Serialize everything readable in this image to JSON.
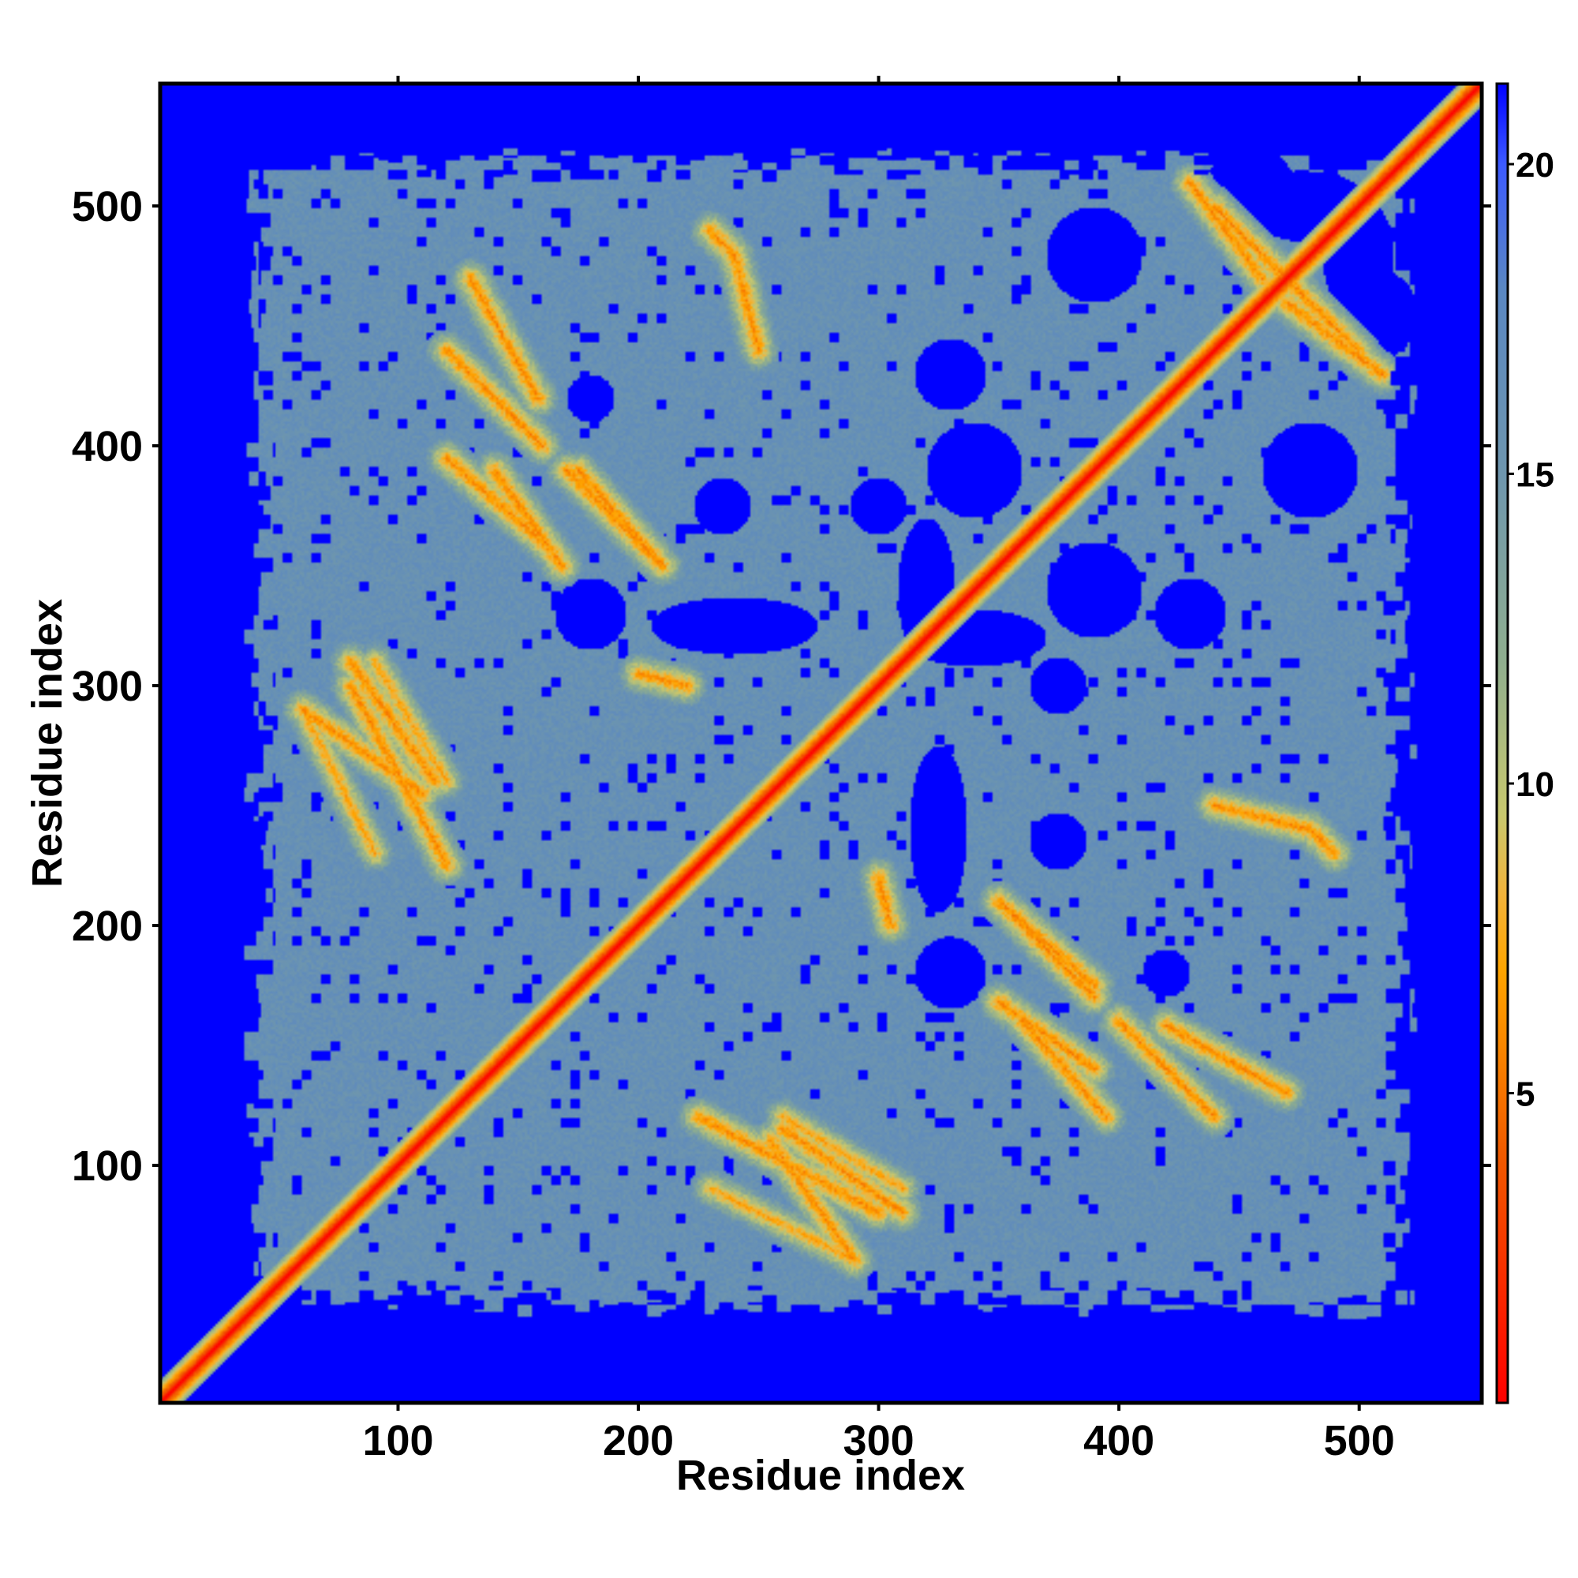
{
  "chart_data": {
    "type": "heatmap",
    "title": "",
    "xlabel": "Residue index",
    "ylabel": "Residue index",
    "xlim": [
      1,
      551
    ],
    "ylim": [
      1,
      551
    ],
    "xticks": [
      100,
      200,
      300,
      400,
      500
    ],
    "yticks": [
      100,
      200,
      300,
      400,
      500
    ],
    "colorbar": {
      "range": [
        0,
        21.3
      ],
      "ticks": [
        5,
        10,
        15,
        20
      ],
      "stops": [
        {
          "value": 0,
          "color": "#ff0000"
        },
        {
          "value": 4,
          "color": "#f05a00"
        },
        {
          "value": 7,
          "color": "#ffa500"
        },
        {
          "value": 8.2,
          "color": "#f2b33a"
        },
        {
          "value": 9.5,
          "color": "#c8c86e"
        },
        {
          "value": 12,
          "color": "#8fae8f"
        },
        {
          "value": 15,
          "color": "#6e96ae"
        },
        {
          "value": 18,
          "color": "#5a87c2"
        },
        {
          "value": 20,
          "color": "#3c5aff"
        },
        {
          "value": 21.3,
          "color": "#0000ff"
        }
      ]
    },
    "matrix_description_values": {
      "diagonal_value": 0,
      "background_value": 21.3,
      "contact_region_value": 16
    },
    "contact_bands": [
      {
        "start": [
          130,
          470
        ],
        "end": [
          158,
          420
        ],
        "value": 6
      },
      {
        "start": [
          140,
          390
        ],
        "end": [
          168,
          350
        ],
        "value": 6
      },
      {
        "start": [
          175,
          390
        ],
        "end": [
          210,
          350
        ],
        "value": 6
      },
      {
        "start": [
          80,
          310
        ],
        "end": [
          115,
          260
        ],
        "value": 6
      },
      {
        "start": [
          60,
          290
        ],
        "end": [
          90,
          230
        ],
        "value": 7
      },
      {
        "start": [
          90,
          310
        ],
        "end": [
          120,
          260
        ],
        "value": 7
      },
      {
        "start": [
          225,
          120
        ],
        "end": [
          300,
          80
        ],
        "value": 6
      },
      {
        "start": [
          255,
          110
        ],
        "end": [
          290,
          60
        ],
        "value": 6
      },
      {
        "start": [
          350,
          210
        ],
        "end": [
          390,
          170
        ],
        "value": 6
      },
      {
        "start": [
          360,
          160
        ],
        "end": [
          395,
          120
        ],
        "value": 6
      },
      {
        "start": [
          400,
          160
        ],
        "end": [
          440,
          120
        ],
        "value": 6
      },
      {
        "start": [
          430,
          510
        ],
        "end": [
          460,
          470
        ],
        "value": 6
      },
      {
        "start": [
          470,
          470
        ],
        "end": [
          500,
          440
        ],
        "value": 6
      },
      {
        "start": [
          240,
          480
        ],
        "end": [
          250,
          440
        ],
        "value": 6
      },
      {
        "start": [
          300,
          220
        ],
        "end": [
          305,
          200
        ],
        "value": 6
      },
      {
        "start": [
          480,
          240
        ],
        "end": [
          490,
          230
        ],
        "value": 6
      }
    ],
    "empty_regions": [
      {
        "center": [
          340,
          320
        ],
        "radius": [
          30,
          12
        ]
      },
      {
        "center": [
          325,
          240
        ],
        "radius": [
          12,
          35
        ]
      },
      {
        "center": [
          390,
          480
        ],
        "radius": [
          20,
          20
        ]
      },
      {
        "center": [
          505,
          455
        ],
        "radius": [
          20,
          20
        ]
      },
      {
        "center": [
          480,
          500
        ],
        "radius": [
          25,
          15
        ]
      },
      {
        "center": [
          180,
          330
        ],
        "radius": [
          15,
          15
        ]
      },
      {
        "center": [
          235,
          375
        ],
        "radius": [
          12,
          12
        ]
      },
      {
        "center": [
          430,
          330
        ],
        "radius": [
          15,
          15
        ]
      },
      {
        "center": [
          340,
          390
        ],
        "radius": [
          20,
          20
        ]
      },
      {
        "center": [
          420,
          180
        ],
        "radius": [
          10,
          10
        ]
      },
      {
        "center": [
          300,
          375
        ],
        "radius": [
          12,
          12
        ]
      }
    ]
  }
}
